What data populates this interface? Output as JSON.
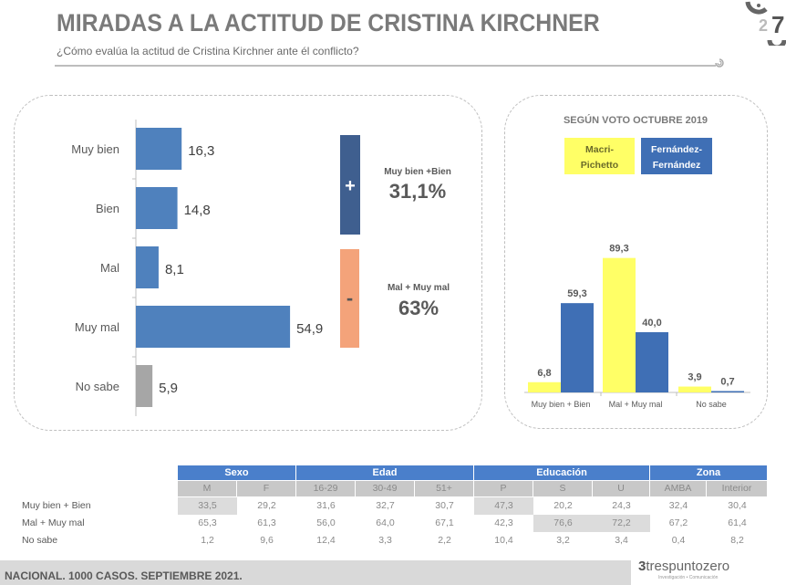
{
  "header": {
    "title": "MIRADAS A LA ACTITUD DE CRISTINA KIRCHNER",
    "subtitle": "¿Cómo evalúa la actitud de Cristina Kirchner ante él conflicto?"
  },
  "colors": {
    "bar_blue": "#4f81bd",
    "bar_gray": "#a6a6a6",
    "plus_block": "#3f5f8f",
    "minus_block": "#f4a37a",
    "macri_yellow": "#ffff66",
    "fernandez_blue": "#3f6fb5",
    "table_header": "#4a7fcb",
    "table_subheader": "#c8c8c8"
  },
  "chart_data": [
    {
      "type": "bar",
      "orientation": "horizontal",
      "categories": [
        "Muy bien",
        "Bien",
        "Mal",
        "Muy mal",
        "No sabe"
      ],
      "values": [
        16.3,
        14.8,
        8.1,
        54.9,
        5.9
      ],
      "value_labels": [
        "16,3",
        "14,8",
        "8,1",
        "54,9",
        "5,9"
      ],
      "xlim": [
        0,
        60
      ],
      "summary": [
        {
          "symbol": "+",
          "label": "Muy bien +Bien",
          "value": "31,1%"
        },
        {
          "symbol": "-",
          "label": "Mal + Muy mal",
          "value": "63%"
        }
      ]
    },
    {
      "type": "bar",
      "title": "SEGÚN VOTO OCTUBRE 2019",
      "categories": [
        "Muy bien + Bien",
        "Mal + Muy mal",
        "No sabe"
      ],
      "series": [
        {
          "name": "Macri-\nPichetto",
          "name_lines": [
            "Macri-",
            "Pichetto"
          ],
          "values": [
            6.8,
            89.3,
            3.9
          ],
          "value_labels": [
            "6,8",
            "89,3",
            "3,9"
          ]
        },
        {
          "name": "Fernández-\nFernández",
          "name_lines": [
            "Fernández-",
            "Fernández"
          ],
          "values": [
            59.3,
            40.0,
            0.7
          ],
          "value_labels": [
            "59,3",
            "40,0",
            "0,7"
          ]
        }
      ],
      "ylim": [
        0,
        100
      ],
      "legend": "top"
    }
  ],
  "table": {
    "groups": [
      {
        "label": "Sexo",
        "span": 2
      },
      {
        "label": "Edad",
        "span": 3
      },
      {
        "label": "Educación",
        "span": 3
      },
      {
        "label": "Zona",
        "span": 2
      }
    ],
    "columns": [
      "M",
      "F",
      "16-29",
      "30-49",
      "51+",
      "P",
      "S",
      "U",
      "AMBA",
      "Interior"
    ],
    "rows": [
      {
        "label": "Muy bien + Bien",
        "values": [
          "33,5",
          "29,2",
          "31,6",
          "32,7",
          "30,7",
          "47,3",
          "20,2",
          "24,3",
          "32,4",
          "30,4"
        ],
        "highlight": [
          0,
          5
        ]
      },
      {
        "label": "Mal + Muy mal",
        "values": [
          "65,3",
          "61,3",
          "56,0",
          "64,0",
          "67,1",
          "42,3",
          "76,6",
          "72,2",
          "67,2",
          "61,4"
        ],
        "highlight": [
          6,
          7
        ]
      },
      {
        "label": "No sabe",
        "values": [
          "1,2",
          "9,6",
          "12,4",
          "3,3",
          "2,2",
          "10,4",
          "3,2",
          "3,4",
          "0,4",
          "8,2"
        ],
        "highlight": []
      }
    ]
  },
  "footer": {
    "text": "NACIONAL. 1000 CASOS. SEPTIEMBRE 2021.",
    "brand": "trespuntozero",
    "brand_tagline": "Investigación • Comunicación"
  }
}
